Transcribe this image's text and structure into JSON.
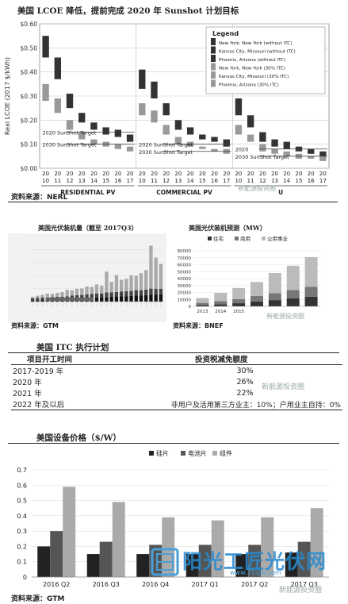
{
  "panel1": {
    "title": "美国 LCOE 降低，提前完成 2020 年 Sunshot 计划目标",
    "source": "资料来源：NERL",
    "ylabel": "Real LCOE (2017 $/kWh)",
    "watermark": "新能源投资圈"
  },
  "panel2a": {
    "title": "美国光伏装机量（截至 2017Q3）",
    "source": "资料来源：GTM"
  },
  "panel2b": {
    "title": "美国光伏装机预测（MW）",
    "source": "资料来源：BNEF",
    "watermark": "新能源投资圈"
  },
  "panel3": {
    "title": "美国 ITC 执行计划",
    "header_period": "项目开工时间",
    "header_credit": "投资税减免额度",
    "rows": [
      {
        "period": "2017-2019 年",
        "credit": "30%"
      },
      {
        "period": "2020 年",
        "credit": "26%"
      },
      {
        "period": "2021 年",
        "credit": "22%"
      },
      {
        "period": "2022 年及以后",
        "credit": "非用户及活用第三方业主：10%；户用业主自持：0%"
      }
    ],
    "watermark": "新能源投资圈"
  },
  "panel4": {
    "title": "美国设备价格（$/W）",
    "source": "资料来源：GTM",
    "watermark": "新能源投资圈",
    "logo_text": "阳光工匠光伏网",
    "logo_url": "www.21spv.com"
  },
  "chart_data": [
    {
      "type": "bar",
      "id": "lcoe",
      "ylabel": "Real LCOE (2017 $/kWh)",
      "ylim": [
        0,
        0.6
      ],
      "yticks": [
        "$0.00",
        "$0.10",
        "$0.20",
        "$0.30",
        "$0.40",
        "$0.50",
        "$0.60"
      ],
      "groups": [
        {
          "name": "RESIDENTIAL PV",
          "categories": [
            "20 10",
            "20 11",
            "20 12",
            "20 13",
            "20 14",
            "20 15",
            "20 16",
            "20 17"
          ]
        },
        {
          "name": "COMMERCIAL PV",
          "categories": [
            "20 10",
            "20 11",
            "20 12",
            "20 13",
            "20 14",
            "20 15",
            "20 16",
            "20 17"
          ]
        },
        {
          "name": "U",
          "categories": [
            "20 10",
            "20 11",
            "20 12",
            "20 13",
            "20 14",
            "20 15",
            "20 16",
            "20 17"
          ]
        }
      ],
      "legend_title": "Legend",
      "legend": [
        "New York, New York (without ITC)",
        "Kansas City, Missouri (without ITC)",
        "Phoenix, Arizona (without ITC)",
        "New York, New York (30% ITC)",
        "Kansas City, Missouri (30% ITC)",
        "Phoenix, Arizona (30% ITC)"
      ],
      "targets": [
        "2020 SunShot Target",
        "2030 SunShot Target",
        "2020 SunShot Target",
        "2030 SunShot Target",
        "2020",
        "2030 SunShot Target"
      ],
      "ranges_no_itc": [
        [
          [
            0.46,
            0.55
          ],
          [
            0.37,
            0.46
          ],
          [
            0.25,
            0.31
          ],
          [
            0.19,
            0.23
          ],
          [
            0.16,
            0.19
          ],
          [
            0.14,
            0.17
          ],
          [
            0.13,
            0.16
          ],
          [
            0.11,
            0.14
          ]
        ],
        [
          [
            0.33,
            0.41
          ],
          [
            0.29,
            0.36
          ],
          [
            0.22,
            0.27
          ],
          [
            0.16,
            0.2
          ],
          [
            0.14,
            0.17
          ],
          [
            0.12,
            0.14
          ],
          [
            0.11,
            0.13
          ],
          [
            0.09,
            0.12
          ]
        ],
        [
          [
            0.22,
            0.29
          ],
          [
            0.17,
            0.22
          ],
          [
            0.11,
            0.15
          ],
          [
            0.09,
            0.12
          ],
          [
            0.08,
            0.11
          ],
          [
            0.07,
            0.09
          ],
          [
            0.06,
            0.08
          ],
          [
            0.05,
            0.07
          ]
        ]
      ],
      "ranges_itc": [
        [
          [
            0.28,
            0.35
          ],
          [
            0.23,
            0.29
          ],
          [
            0.16,
            0.2
          ],
          [
            0.12,
            0.15
          ],
          [
            0.1,
            0.12
          ],
          [
            0.09,
            0.11
          ],
          [
            0.08,
            0.1
          ],
          [
            0.07,
            0.09
          ]
        ],
        [
          [
            0.22,
            0.27
          ],
          [
            0.19,
            0.24
          ],
          [
            0.14,
            0.18
          ],
          [
            0.1,
            0.13
          ],
          [
            0.09,
            0.11
          ],
          [
            0.08,
            0.09
          ],
          [
            0.07,
            0.08
          ],
          [
            0.06,
            0.08
          ]
        ],
        [
          [
            0.14,
            0.18
          ],
          [
            0.11,
            0.14
          ],
          [
            0.07,
            0.1
          ],
          [
            0.06,
            0.08
          ],
          [
            0.05,
            0.07
          ],
          [
            0.04,
            0.06
          ],
          [
            0.04,
            0.05
          ],
          [
            0.03,
            0.05
          ]
        ]
      ]
    },
    {
      "type": "bar",
      "id": "installs",
      "stacked": true,
      "series": [
        {
          "name": "Utility",
          "values": [
            120,
            180,
            200,
            300,
            250,
            300,
            350,
            500,
            400,
            500,
            500,
            600,
            550,
            700,
            600,
            1600,
            800,
            1300,
            900,
            950,
            1200,
            1100,
            1300,
            1500,
            3300,
            2400,
            1900
          ]
        },
        {
          "name": "Commercial",
          "values": [
            150,
            180,
            200,
            180,
            200,
            200,
            200,
            200,
            250,
            250,
            250,
            280,
            280,
            300,
            300,
            350,
            350,
            350,
            380,
            380,
            380,
            420,
            400,
            420,
            480,
            450,
            430
          ]
        },
        {
          "name": "Residential",
          "values": [
            100,
            100,
            120,
            130,
            150,
            170,
            180,
            200,
            220,
            240,
            260,
            280,
            300,
            320,
            330,
            350,
            370,
            390,
            400,
            420,
            440,
            460,
            480,
            500,
            520,
            540,
            560
          ]
        }
      ],
      "ylim": [
        0,
        5000
      ]
    },
    {
      "type": "bar",
      "id": "forecast",
      "stacked": true,
      "categories": [
        "2013",
        "2014",
        "2015",
        "",
        "",
        "",
        ""
      ],
      "xticks": [
        "2013",
        "2014",
        "2015"
      ],
      "yticks": [
        "0",
        "10000",
        "20000",
        "30000",
        "40000",
        "50000",
        "60000",
        "70000",
        "80000"
      ],
      "ylim": [
        0,
        80000
      ],
      "legend": [
        "住宅",
        "商用",
        "公用事业"
      ],
      "series": [
        {
          "name": "住宅",
          "values": [
            2000,
            3000,
            4500,
            7000,
            9000,
            11500,
            14000
          ]
        },
        {
          "name": "商用",
          "values": [
            3000,
            4500,
            6000,
            8000,
            10000,
            12000,
            14000
          ]
        },
        {
          "name": "公用事业",
          "values": [
            7000,
            12000,
            16000,
            20000,
            29000,
            35000,
            43000
          ]
        }
      ]
    },
    {
      "type": "bar",
      "id": "prices",
      "categories": [
        "2016 Q2",
        "2016 Q3",
        "2016 Q4",
        "2017 Q1",
        "2017 Q2",
        "2017 Q3"
      ],
      "legend": [
        "硅片",
        "电池片",
        "组件"
      ],
      "ylim": [
        0,
        0.7
      ],
      "yticks": [
        "0",
        "0.1",
        "0.2",
        "0.3",
        "0.4",
        "0.5",
        "0.6",
        "0.7"
      ],
      "series": [
        {
          "name": "硅片",
          "values": [
            0.2,
            0.15,
            0.15,
            0.15,
            0.15,
            0.16
          ]
        },
        {
          "name": "电池片",
          "values": [
            0.3,
            0.23,
            0.21,
            0.21,
            0.21,
            0.23
          ]
        },
        {
          "name": "组件",
          "values": [
            0.59,
            0.49,
            0.39,
            0.37,
            0.39,
            0.45
          ]
        }
      ]
    }
  ]
}
